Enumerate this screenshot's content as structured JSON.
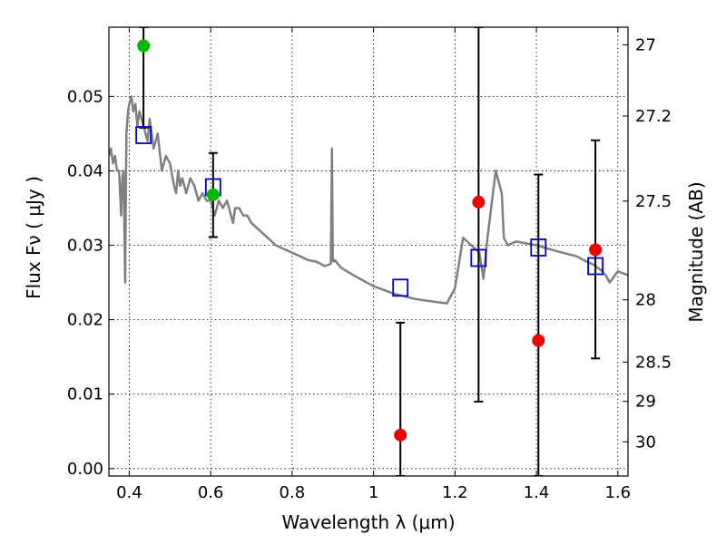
{
  "chart_data": {
    "type": "scatter",
    "title": "",
    "xlabel": "Wavelength  λ (μm)",
    "ylabel": "Flux  Fν ( μJy )",
    "y2label": "Magnitude (AB)",
    "xlim": [
      0.35,
      1.625
    ],
    "ylim": [
      -0.001,
      0.0593
    ],
    "grid": true,
    "x_ticks": [
      0.4,
      0.6,
      0.8,
      1.0,
      1.2,
      1.4,
      1.6
    ],
    "x_tick_labels": [
      "0.4",
      "0.6",
      "0.8",
      "1",
      "1.2",
      "1.4",
      "1.6"
    ],
    "y_ticks": [
      0.0,
      0.01,
      0.02,
      0.03,
      0.04,
      0.05
    ],
    "y_tick_labels": [
      "0.00",
      "0.01",
      "0.02",
      "0.03",
      "0.04",
      "0.05"
    ],
    "mag_ticks": [
      27,
      27.2,
      27.5,
      28,
      28.5,
      29,
      30
    ],
    "mag_tick_labels": [
      "27",
      "27.2",
      "27.5",
      "28",
      "28.5",
      "29",
      "30"
    ],
    "model_spectrum": {
      "color": "#808080",
      "x": [
        0.35,
        0.355,
        0.36,
        0.365,
        0.37,
        0.375,
        0.38,
        0.383,
        0.386,
        0.39,
        0.393,
        0.397,
        0.4,
        0.405,
        0.41,
        0.415,
        0.42,
        0.425,
        0.43,
        0.435,
        0.44,
        0.445,
        0.45,
        0.46,
        0.47,
        0.48,
        0.49,
        0.5,
        0.51,
        0.515,
        0.52,
        0.525,
        0.53,
        0.54,
        0.55,
        0.56,
        0.57,
        0.58,
        0.59,
        0.6,
        0.61,
        0.62,
        0.63,
        0.64,
        0.65,
        0.655,
        0.66,
        0.67,
        0.68,
        0.69,
        0.7,
        0.72,
        0.74,
        0.76,
        0.78,
        0.8,
        0.82,
        0.84,
        0.86,
        0.88,
        0.895,
        0.898,
        0.9,
        0.902,
        0.905,
        0.92,
        0.95,
        1.0,
        1.05,
        1.1,
        1.15,
        1.18,
        1.2,
        1.22,
        1.24,
        1.26,
        1.27,
        1.28,
        1.3,
        1.315,
        1.32,
        1.33,
        1.35,
        1.4,
        1.45,
        1.5,
        1.52,
        1.54,
        1.55,
        1.56,
        1.57,
        1.58,
        1.6,
        1.625
      ],
      "y": [
        0.042,
        0.043,
        0.041,
        0.042,
        0.04,
        0.04,
        0.034,
        0.039,
        0.04,
        0.025,
        0.045,
        0.048,
        0.049,
        0.05,
        0.048,
        0.049,
        0.046,
        0.048,
        0.047,
        0.046,
        0.045,
        0.044,
        0.047,
        0.043,
        0.045,
        0.04,
        0.042,
        0.041,
        0.038,
        0.037,
        0.04,
        0.038,
        0.039,
        0.037,
        0.039,
        0.038,
        0.036,
        0.037,
        0.036,
        0.036,
        0.034,
        0.036,
        0.035,
        0.036,
        0.034,
        0.033,
        0.035,
        0.035,
        0.034,
        0.034,
        0.033,
        0.032,
        0.031,
        0.03,
        0.0295,
        0.029,
        0.0285,
        0.028,
        0.0278,
        0.0272,
        0.0275,
        0.043,
        0.028,
        0.0278,
        0.028,
        0.027,
        0.026,
        0.0245,
        0.0235,
        0.0228,
        0.0224,
        0.0222,
        0.0242,
        0.031,
        0.03,
        0.029,
        0.0255,
        0.031,
        0.04,
        0.037,
        0.031,
        0.03,
        0.0305,
        0.03,
        0.0292,
        0.0285,
        0.0279,
        0.0274,
        0.027,
        0.0266,
        0.026,
        0.025,
        0.0265,
        0.026
      ]
    },
    "series": [
      {
        "name": "",
        "marker": "open-square",
        "color": "#0000cc",
        "x": [
          0.435,
          0.606,
          1.066,
          1.258,
          1.405,
          1.545
        ],
        "y": [
          0.0448,
          0.0378,
          0.0243,
          0.0283,
          0.0297,
          0.0272
        ]
      },
      {
        "name": "",
        "marker": "filled-circle",
        "color": "#00bb00",
        "x": [
          0.435,
          0.606
        ],
        "y": [
          0.0568,
          0.0368
        ]
      },
      {
        "name": "",
        "marker": "filled-circle",
        "color": "#ee0000",
        "x": [
          1.066,
          1.258,
          1.405,
          1.545
        ],
        "y": [
          0.0045,
          0.0358,
          0.0172,
          0.0294
        ]
      }
    ],
    "error_bars": [
      {
        "x": 0.435,
        "y_low": 0.0458,
        "y_high": 0.0593
      },
      {
        "x": 0.606,
        "y_low": 0.0311,
        "y_high": 0.0424
      },
      {
        "x": 1.066,
        "y_low": -0.001,
        "y_high": 0.0196
      },
      {
        "x": 1.258,
        "y_low": 0.009,
        "y_high": 0.0593
      },
      {
        "x": 1.405,
        "y_low": -0.001,
        "y_high": 0.0395
      },
      {
        "x": 1.545,
        "y_low": 0.0148,
        "y_high": 0.0441
      }
    ]
  }
}
